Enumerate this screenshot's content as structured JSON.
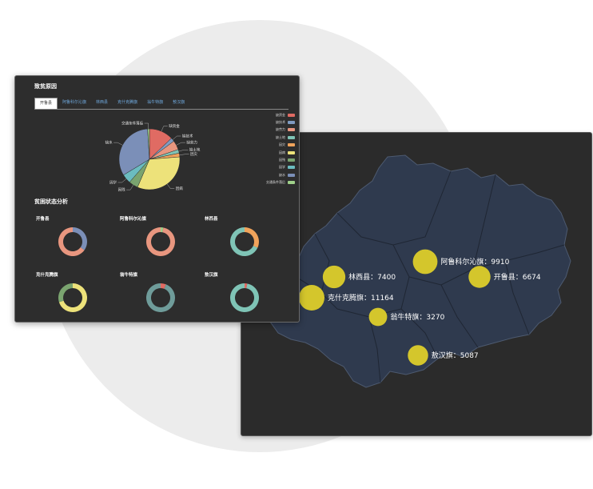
{
  "dashboard": {
    "poverty_title": "致贫原因",
    "status_title": "贫困状态分析",
    "tabs": [
      {
        "label": "开鲁县",
        "active": true
      },
      {
        "label": "阿鲁科尔沁旗",
        "active": false
      },
      {
        "label": "林西县",
        "active": false
      },
      {
        "label": "克什克腾旗",
        "active": false
      },
      {
        "label": "翁牛特旗",
        "active": false
      },
      {
        "label": "敖汉旗",
        "active": false
      }
    ],
    "pie_legend": [
      {
        "label": "缺资金",
        "color": "#e06b63"
      },
      {
        "label": "缺技术",
        "color": "#7f9bc1"
      },
      {
        "label": "缺劳力",
        "color": "#e8967f"
      },
      {
        "label": "缺土地",
        "color": "#7fc4b6"
      },
      {
        "label": "因灾",
        "color": "#f0a35b"
      },
      {
        "label": "因病",
        "color": "#ede27a"
      },
      {
        "label": "因残",
        "color": "#7aa46f"
      },
      {
        "label": "因学",
        "color": "#6bbcc0"
      },
      {
        "label": "缺水",
        "color": "#7b8fb8"
      },
      {
        "label": "交通条件落后",
        "color": "#9fd08a"
      }
    ],
    "donuts": [
      {
        "name": "开鲁县",
        "segments": [
          {
            "value": 0.35,
            "color": "#7b8fb8"
          },
          {
            "value": 0.65,
            "color": "#e8967f"
          }
        ]
      },
      {
        "name": "阿鲁科尔沁旗",
        "segments": [
          {
            "value": 0.03,
            "color": "#9fd08a"
          },
          {
            "value": 0.97,
            "color": "#e8967f"
          }
        ]
      },
      {
        "name": "林西县",
        "segments": [
          {
            "value": 0.32,
            "color": "#f0a35b"
          },
          {
            "value": 0.68,
            "color": "#7fc4b6"
          }
        ]
      },
      {
        "name": "克什克腾旗",
        "segments": [
          {
            "value": 0.7,
            "color": "#ede27a"
          },
          {
            "value": 0.3,
            "color": "#7aa46f"
          }
        ]
      },
      {
        "name": "翁牛特旗",
        "segments": [
          {
            "value": 0.06,
            "color": "#e06b63"
          },
          {
            "value": 0.94,
            "color": "#6f9c9a"
          }
        ]
      },
      {
        "name": "敖汉旗",
        "segments": [
          {
            "value": 0.03,
            "color": "#e06b63"
          },
          {
            "value": 0.97,
            "color": "#7fc4b6"
          }
        ]
      }
    ]
  },
  "chart_data": {
    "type": "pie",
    "categories": [
      "缺资金",
      "缺技术",
      "缺劳力",
      "缺土地",
      "因灾",
      "因病",
      "因残",
      "因学",
      "缺水",
      "交通条件落后"
    ],
    "values": [
      13,
      2,
      5,
      2,
      2,
      33,
      5,
      5,
      33,
      1
    ],
    "legend_position": "right"
  },
  "map": {
    "region_fill": "#2f3a4e",
    "bubble_color": "#d4c62c",
    "points": [
      {
        "label": "阿鲁科尔沁旗：9910",
        "value": 9910
      },
      {
        "label": "开鲁县：6674",
        "value": 6674
      },
      {
        "label": "林西县：7400",
        "value": 7400
      },
      {
        "label": "克什克腾旗：11164",
        "value": 11164
      },
      {
        "label": "翁牛特旗：3270",
        "value": 3270
      },
      {
        "label": "敖汉旗：5087",
        "value": 5087
      }
    ]
  }
}
